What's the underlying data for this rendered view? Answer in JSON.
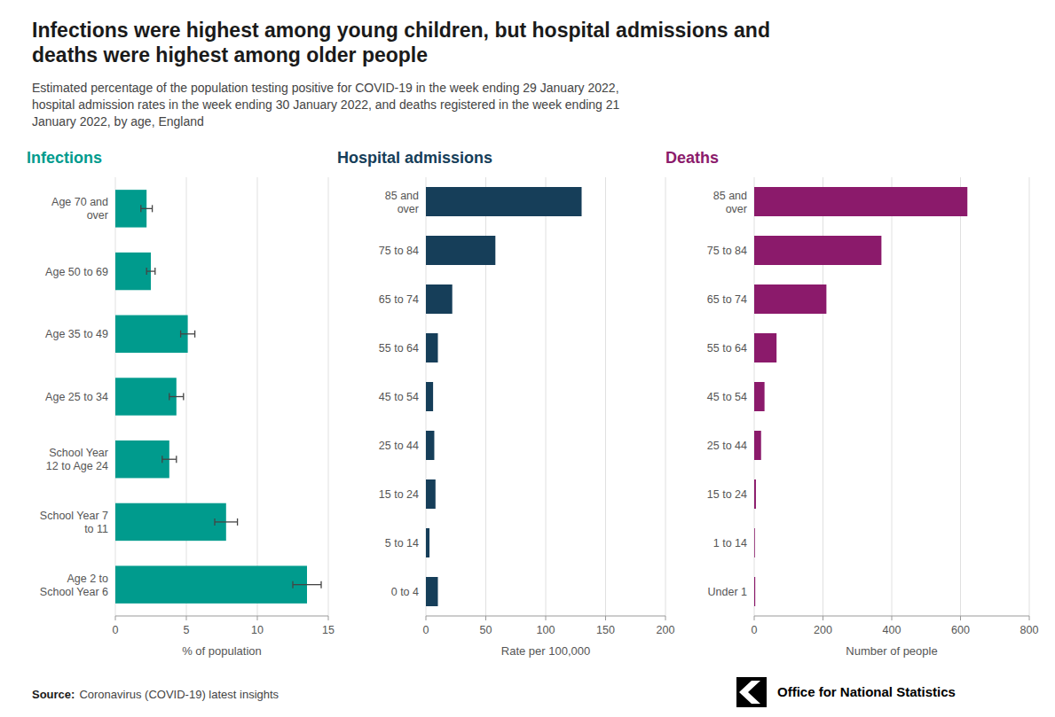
{
  "title": "Infections were highest among young children, but hospital admissions and\ndeaths were highest among older people",
  "subtitle": "Estimated percentage of the population testing positive for COVID-19 in the week ending 29 January 2022,\nhospital admission rates in the week ending 30 January 2022, and deaths registered in the week ending 21\nJanuary 2022, by age, England",
  "annotations": [
    "Source:",
    "Coronavirus (COVID-19) latest insights",
    "Office for National Statistics"
  ],
  "chart_data": [
    {
      "type": "bar",
      "orientation": "horizontal",
      "title": "Infections",
      "color": "#009B8D",
      "categories": [
        "Age 70 and\nover",
        "Age 50 to 69",
        "Age 35 to 49",
        "Age 25 to 34",
        "School Year\n12 to Age 24",
        "School Year 7\nto 11",
        "Age 2 to\nSchool Year 6"
      ],
      "values": [
        2.2,
        2.5,
        5.1,
        4.3,
        3.8,
        7.8,
        13.5
      ],
      "errors": [
        0.4,
        0.3,
        0.5,
        0.5,
        0.5,
        0.8,
        1.0
      ],
      "xlabel": "% of population",
      "xlim": [
        0,
        15
      ],
      "xticks": [
        0,
        5,
        10,
        15
      ],
      "grid": true
    },
    {
      "type": "bar",
      "orientation": "horizontal",
      "title": "Hospital admissions",
      "color": "#163E59",
      "categories": [
        "85 and\nover",
        "75 to 84",
        "65 to 74",
        "55 to 64",
        "45 to 54",
        "25 to 44",
        "15 to 24",
        "5 to 14",
        "0 to 4"
      ],
      "values": [
        130,
        58,
        22,
        10,
        6,
        7,
        8,
        3,
        10
      ],
      "xlabel": "Rate per 100,000",
      "xlim": [
        0,
        200
      ],
      "xticks": [
        0,
        50,
        100,
        150,
        200
      ],
      "grid": true
    },
    {
      "type": "bar",
      "orientation": "horizontal",
      "title": "Deaths",
      "color": "#8B1A6B",
      "categories": [
        "85 and\nover",
        "75 to 84",
        "65 to 74",
        "55 to 64",
        "45 to 54",
        "25 to 44",
        "15 to 24",
        "1 to 14",
        "Under 1"
      ],
      "values": [
        620,
        370,
        210,
        65,
        30,
        20,
        5,
        2,
        3
      ],
      "xlabel": "Number of people",
      "xlim": [
        0,
        800
      ],
      "xticks": [
        0,
        200,
        400,
        600,
        800
      ],
      "grid": true
    }
  ]
}
